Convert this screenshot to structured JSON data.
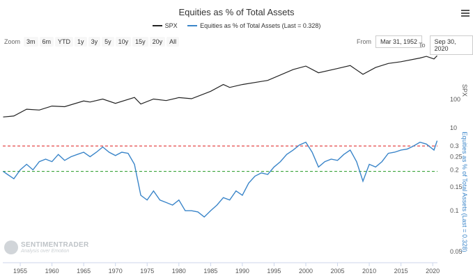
{
  "chart_data": {
    "type": "line",
    "title": "Equities as % of Total Assets",
    "legend": [
      {
        "name": "SPX",
        "color": "#222222"
      },
      {
        "name": "Equities as % of Total Assets (Last = 0.328)",
        "color": "#3a85c9"
      }
    ],
    "x_range": [
      1952.25,
      2020.75
    ],
    "x_ticks": [
      "1955",
      "1960",
      "1965",
      "1970",
      "1975",
      "1980",
      "1985",
      "1990",
      "1995",
      "2000",
      "2005",
      "2010",
      "2015",
      "2020"
    ],
    "spx": {
      "axis_label": "SPX",
      "scale": "log",
      "tick_labels": [
        "100",
        "10"
      ],
      "points": [
        [
          1952.3,
          24
        ],
        [
          1954,
          26
        ],
        [
          1956,
          45
        ],
        [
          1958,
          42
        ],
        [
          1960,
          58
        ],
        [
          1962,
          55
        ],
        [
          1965,
          87
        ],
        [
          1966,
          80
        ],
        [
          1968,
          102
        ],
        [
          1970,
          72
        ],
        [
          1973,
          116
        ],
        [
          1974,
          68
        ],
        [
          1976,
          102
        ],
        [
          1978,
          90
        ],
        [
          1980,
          115
        ],
        [
          1982,
          105
        ],
        [
          1985,
          190
        ],
        [
          1987,
          330
        ],
        [
          1988,
          260
        ],
        [
          1990,
          330
        ],
        [
          1994,
          460
        ],
        [
          1998,
          1100
        ],
        [
          2000,
          1460
        ],
        [
          2002,
          850
        ],
        [
          2005,
          1200
        ],
        [
          2007,
          1520
        ],
        [
          2009,
          750
        ],
        [
          2011,
          1300
        ],
        [
          2013,
          1800
        ],
        [
          2015,
          2070
        ],
        [
          2018,
          2800
        ],
        [
          2019,
          3200
        ],
        [
          2020.2,
          2600
        ],
        [
          2020.7,
          3360
        ]
      ]
    },
    "equity_pct": {
      "axis_label": "Equities as % of Total Assets (Last = 0.328)",
      "scale": "log",
      "tick_labels": [
        "0.3",
        "0.25",
        "0.2",
        "0.15",
        "0.1",
        "0.05"
      ],
      "last": 0.328,
      "points": [
        [
          1952.3,
          0.195
        ],
        [
          1953,
          0.185
        ],
        [
          1954,
          0.172
        ],
        [
          1955,
          0.2
        ],
        [
          1956,
          0.22
        ],
        [
          1957,
          0.2
        ],
        [
          1958,
          0.23
        ],
        [
          1959,
          0.24
        ],
        [
          1960,
          0.23
        ],
        [
          1961,
          0.26
        ],
        [
          1962,
          0.235
        ],
        [
          1963,
          0.25
        ],
        [
          1964,
          0.26
        ],
        [
          1965,
          0.27
        ],
        [
          1966,
          0.25
        ],
        [
          1967,
          0.27
        ],
        [
          1968,
          0.295
        ],
        [
          1969,
          0.27
        ],
        [
          1970,
          0.255
        ],
        [
          1971,
          0.27
        ],
        [
          1972,
          0.265
        ],
        [
          1973,
          0.22
        ],
        [
          1974,
          0.13
        ],
        [
          1975,
          0.12
        ],
        [
          1976,
          0.14
        ],
        [
          1977,
          0.12
        ],
        [
          1978,
          0.115
        ],
        [
          1979,
          0.11
        ],
        [
          1980,
          0.12
        ],
        [
          1981,
          0.1
        ],
        [
          1982,
          0.1
        ],
        [
          1983,
          0.098
        ],
        [
          1984,
          0.09
        ],
        [
          1985,
          0.1
        ],
        [
          1986,
          0.11
        ],
        [
          1987,
          0.125
        ],
        [
          1988,
          0.12
        ],
        [
          1989,
          0.14
        ],
        [
          1990,
          0.13
        ],
        [
          1991,
          0.16
        ],
        [
          1992,
          0.18
        ],
        [
          1993,
          0.19
        ],
        [
          1994,
          0.185
        ],
        [
          1995,
          0.21
        ],
        [
          1996,
          0.23
        ],
        [
          1997,
          0.26
        ],
        [
          1998,
          0.28
        ],
        [
          1999,
          0.305
        ],
        [
          2000,
          0.32
        ],
        [
          2001,
          0.27
        ],
        [
          2002,
          0.21
        ],
        [
          2003,
          0.23
        ],
        [
          2004,
          0.24
        ],
        [
          2005,
          0.235
        ],
        [
          2006,
          0.26
        ],
        [
          2007,
          0.28
        ],
        [
          2008,
          0.23
        ],
        [
          2009,
          0.165
        ],
        [
          2010,
          0.22
        ],
        [
          2011,
          0.21
        ],
        [
          2012,
          0.23
        ],
        [
          2013,
          0.265
        ],
        [
          2014,
          0.27
        ],
        [
          2015,
          0.28
        ],
        [
          2016,
          0.285
        ],
        [
          2017,
          0.3
        ],
        [
          2018,
          0.32
        ],
        [
          2019,
          0.31
        ],
        [
          2020.2,
          0.28
        ],
        [
          2020.7,
          0.328
        ]
      ]
    },
    "reference_lines": [
      {
        "value": 0.3,
        "color": "#e03030",
        "style": "dashed"
      },
      {
        "value": 0.195,
        "color": "#3aa33a",
        "style": "dashed"
      }
    ],
    "grid": false
  },
  "controls": {
    "zoom_label": "Zoom",
    "zoom_buttons": [
      "3m",
      "6m",
      "YTD",
      "1y",
      "3y",
      "5y",
      "10y",
      "15y",
      "20y",
      "All"
    ],
    "from_label": "From",
    "from_value": "Mar 31, 1952",
    "to_label": "To",
    "to_value": "Sep 30, 2020"
  },
  "watermark": {
    "name": "SENTIMENTRADER",
    "tagline": "Analysis over Emotion"
  }
}
